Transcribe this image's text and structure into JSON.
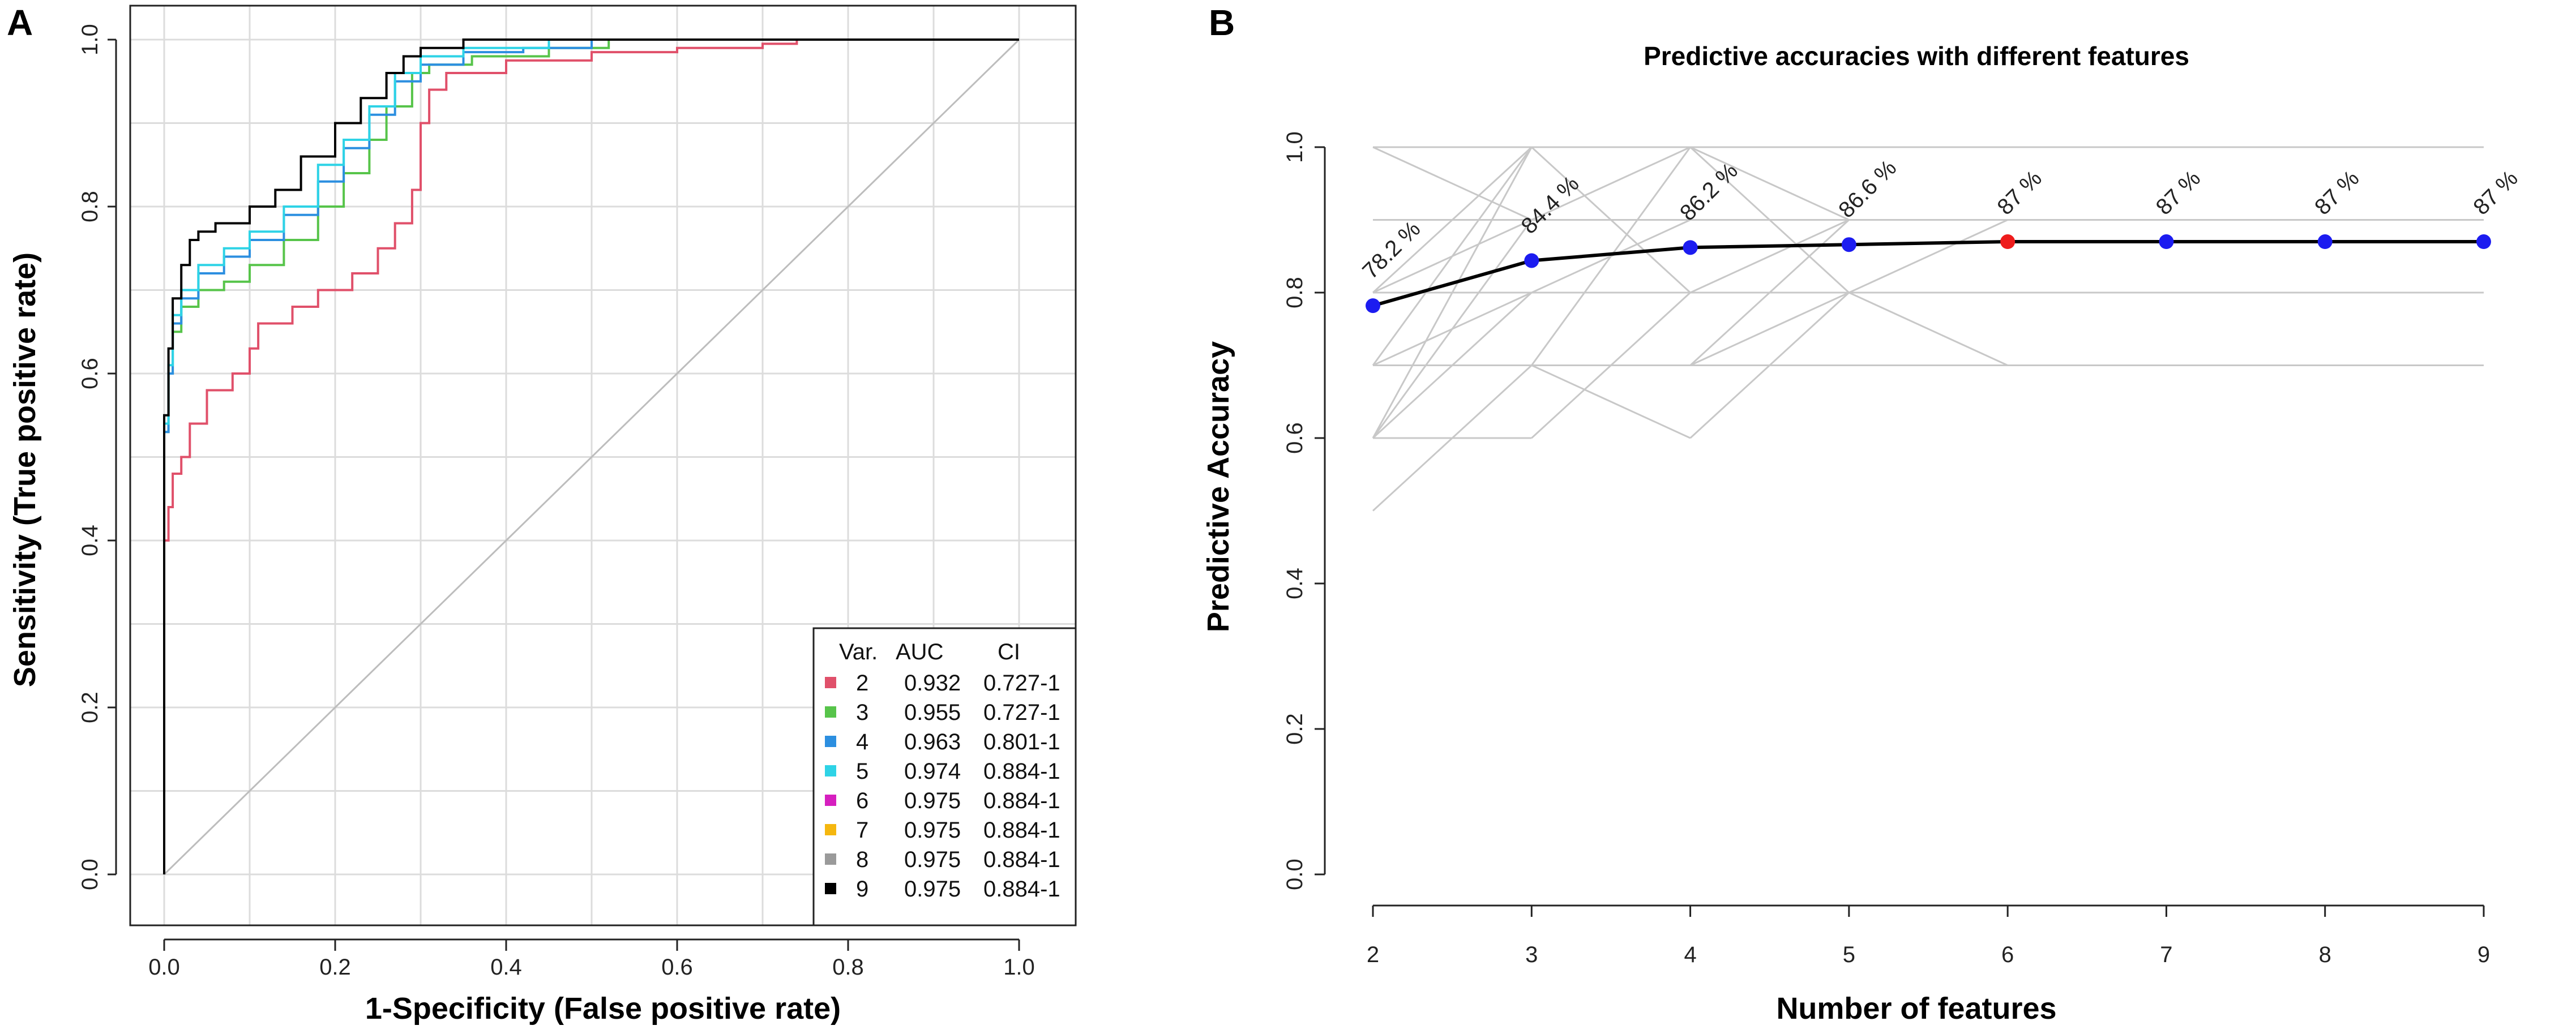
{
  "chart_data": [
    {
      "panel": "A",
      "type": "line",
      "title": "",
      "xlabel": "1-Specificity (False positive rate)",
      "ylabel": "Sensitivity (True positive rate)",
      "xlim": [
        0,
        1
      ],
      "ylim": [
        0,
        1
      ],
      "xticks": [
        "0.0",
        "0.2",
        "0.4",
        "0.6",
        "0.8",
        "1.0"
      ],
      "yticks": [
        "0.0",
        "0.2",
        "0.4",
        "0.6",
        "0.8",
        "1.0"
      ],
      "grid": true,
      "legend": {
        "placement": "bottom-right",
        "headers": [
          "Var.",
          "AUC",
          "CI"
        ],
        "entries": [
          {
            "var": "2",
            "auc": "0.932",
            "ci": "0.727-1",
            "color": "#e0506a"
          },
          {
            "var": "3",
            "auc": "0.955",
            "ci": "0.727-1",
            "color": "#57c44a"
          },
          {
            "var": "4",
            "auc": "0.963",
            "ci": "0.801-1",
            "color": "#2c8fe0"
          },
          {
            "var": "5",
            "auc": "0.974",
            "ci": "0.884-1",
            "color": "#2ed3e6"
          },
          {
            "var": "6",
            "auc": "0.975",
            "ci": "0.884-1",
            "color": "#d61fbf"
          },
          {
            "var": "7",
            "auc": "0.975",
            "ci": "0.884-1",
            "color": "#f5b70f"
          },
          {
            "var": "8",
            "auc": "0.975",
            "ci": "0.884-1",
            "color": "#9a9a9a"
          },
          {
            "var": "9",
            "auc": "0.975",
            "ci": "0.884-1",
            "color": "#000000"
          }
        ]
      },
      "series": [
        {
          "name": "2",
          "color": "#e0506a",
          "points": [
            [
              0,
              0
            ],
            [
              0,
              0.4
            ],
            [
              0.005,
              0.44
            ],
            [
              0.01,
              0.48
            ],
            [
              0.02,
              0.5
            ],
            [
              0.03,
              0.54
            ],
            [
              0.05,
              0.58
            ],
            [
              0.08,
              0.6
            ],
            [
              0.1,
              0.63
            ],
            [
              0.11,
              0.66
            ],
            [
              0.15,
              0.68
            ],
            [
              0.18,
              0.7
            ],
            [
              0.22,
              0.72
            ],
            [
              0.25,
              0.75
            ],
            [
              0.27,
              0.78
            ],
            [
              0.29,
              0.82
            ],
            [
              0.3,
              0.9
            ],
            [
              0.31,
              0.94
            ],
            [
              0.33,
              0.96
            ],
            [
              0.4,
              0.975
            ],
            [
              0.5,
              0.985
            ],
            [
              0.6,
              0.99
            ],
            [
              0.7,
              0.995
            ],
            [
              0.74,
              1.0
            ],
            [
              1.0,
              1.0
            ]
          ]
        },
        {
          "name": "3",
          "color": "#57c44a",
          "points": [
            [
              0,
              0
            ],
            [
              0,
              0.53
            ],
            [
              0.005,
              0.6
            ],
            [
              0.01,
              0.65
            ],
            [
              0.02,
              0.68
            ],
            [
              0.04,
              0.7
            ],
            [
              0.07,
              0.71
            ],
            [
              0.1,
              0.73
            ],
            [
              0.14,
              0.76
            ],
            [
              0.18,
              0.8
            ],
            [
              0.21,
              0.84
            ],
            [
              0.24,
              0.88
            ],
            [
              0.26,
              0.92
            ],
            [
              0.29,
              0.96
            ],
            [
              0.31,
              0.97
            ],
            [
              0.36,
              0.98
            ],
            [
              0.45,
              0.99
            ],
            [
              0.52,
              1.0
            ],
            [
              1.0,
              1.0
            ]
          ]
        },
        {
          "name": "4",
          "color": "#2c8fe0",
          "points": [
            [
              0,
              0
            ],
            [
              0,
              0.53
            ],
            [
              0.005,
              0.6
            ],
            [
              0.01,
              0.66
            ],
            [
              0.02,
              0.69
            ],
            [
              0.04,
              0.72
            ],
            [
              0.07,
              0.74
            ],
            [
              0.1,
              0.76
            ],
            [
              0.14,
              0.79
            ],
            [
              0.18,
              0.83
            ],
            [
              0.21,
              0.87
            ],
            [
              0.24,
              0.91
            ],
            [
              0.27,
              0.95
            ],
            [
              0.3,
              0.97
            ],
            [
              0.35,
              0.985
            ],
            [
              0.42,
              0.99
            ],
            [
              0.5,
              1.0
            ],
            [
              1.0,
              1.0
            ]
          ]
        },
        {
          "name": "5",
          "color": "#2ed3e6",
          "points": [
            [
              0,
              0
            ],
            [
              0,
              0.54
            ],
            [
              0.005,
              0.61
            ],
            [
              0.01,
              0.67
            ],
            [
              0.02,
              0.7
            ],
            [
              0.04,
              0.73
            ],
            [
              0.07,
              0.75
            ],
            [
              0.1,
              0.77
            ],
            [
              0.14,
              0.8
            ],
            [
              0.18,
              0.85
            ],
            [
              0.21,
              0.88
            ],
            [
              0.24,
              0.92
            ],
            [
              0.27,
              0.96
            ],
            [
              0.3,
              0.98
            ],
            [
              0.35,
              0.99
            ],
            [
              0.45,
              1.0
            ],
            [
              1.0,
              1.0
            ]
          ]
        },
        {
          "name": "9",
          "color": "#000000",
          "points": [
            [
              0,
              0
            ],
            [
              0,
              0.55
            ],
            [
              0.005,
              0.63
            ],
            [
              0.01,
              0.69
            ],
            [
              0.02,
              0.73
            ],
            [
              0.03,
              0.76
            ],
            [
              0.04,
              0.77
            ],
            [
              0.06,
              0.78
            ],
            [
              0.1,
              0.8
            ],
            [
              0.13,
              0.82
            ],
            [
              0.16,
              0.86
            ],
            [
              0.2,
              0.9
            ],
            [
              0.23,
              0.93
            ],
            [
              0.26,
              0.96
            ],
            [
              0.28,
              0.98
            ],
            [
              0.3,
              0.99
            ],
            [
              0.35,
              1.0
            ],
            [
              1.0,
              1.0
            ]
          ]
        }
      ]
    },
    {
      "panel": "B",
      "type": "line",
      "title": "Predictive accuracies with different features",
      "xlabel": "Number of features",
      "ylabel": "Predictive Accuracy",
      "xlim": [
        2,
        9
      ],
      "ylim": [
        0,
        1
      ],
      "xticks": [
        "2",
        "3",
        "4",
        "5",
        "6",
        "7",
        "8",
        "9"
      ],
      "yticks": [
        "0.0",
        "0.2",
        "0.4",
        "0.6",
        "0.8",
        "1.0"
      ],
      "grid": false,
      "series": [
        {
          "name": "Predictive accuracy",
          "color": "#000000",
          "x": [
            2,
            3,
            4,
            5,
            6,
            7,
            8,
            9
          ],
          "values": [
            0.782,
            0.844,
            0.862,
            0.866,
            0.87,
            0.87,
            0.87,
            0.87
          ],
          "labels": [
            "78.2 %",
            "84.4 %",
            "86.2 %",
            "86.6 %",
            "87 %",
            "87 %",
            "87 %",
            "87 %"
          ],
          "point_colors": [
            "#1c1cf0",
            "#1c1cf0",
            "#1c1cf0",
            "#1c1cf0",
            "#ee1c1c",
            "#1c1cf0",
            "#1c1cf0",
            "#1c1cf0"
          ]
        }
      ],
      "background_lines": {
        "color": "#c8c8c8",
        "segments": [
          [
            [
              2,
              0.5
            ],
            [
              3,
              0.7
            ]
          ],
          [
            [
              2,
              0.6
            ],
            [
              3,
              0.6
            ]
          ],
          [
            [
              2,
              0.6
            ],
            [
              3,
              0.8
            ]
          ],
          [
            [
              2,
              0.6
            ],
            [
              3,
              0.9
            ]
          ],
          [
            [
              2,
              0.6
            ],
            [
              3,
              1.0
            ]
          ],
          [
            [
              2,
              0.7
            ],
            [
              3,
              0.7
            ]
          ],
          [
            [
              2,
              0.7
            ],
            [
              3,
              0.8
            ]
          ],
          [
            [
              2,
              0.7
            ],
            [
              3,
              1.0
            ]
          ],
          [
            [
              2,
              0.8
            ],
            [
              3,
              0.9
            ]
          ],
          [
            [
              2,
              0.8
            ],
            [
              3,
              1.0
            ]
          ],
          [
            [
              2,
              0.9
            ],
            [
              3,
              0.9
            ]
          ],
          [
            [
              2,
              1.0
            ],
            [
              3,
              0.9
            ]
          ],
          [
            [
              2,
              1.0
            ],
            [
              3,
              1.0
            ]
          ],
          [
            [
              3,
              0.6
            ],
            [
              4,
              0.8
            ]
          ],
          [
            [
              3,
              0.7
            ],
            [
              4,
              0.6
            ]
          ],
          [
            [
              3,
              0.7
            ],
            [
              4,
              0.7
            ]
          ],
          [
            [
              3,
              0.7
            ],
            [
              4,
              1.0
            ]
          ],
          [
            [
              3,
              0.8
            ],
            [
              4,
              0.9
            ]
          ],
          [
            [
              3,
              0.8
            ],
            [
              4,
              0.8
            ]
          ],
          [
            [
              3,
              0.9
            ],
            [
              4,
              0.9
            ]
          ],
          [
            [
              3,
              0.9
            ],
            [
              4,
              1.0
            ]
          ],
          [
            [
              3,
              1.0
            ],
            [
              4,
              1.0
            ]
          ],
          [
            [
              3,
              1.0
            ],
            [
              4,
              0.8
            ]
          ],
          [
            [
              4,
              0.6
            ],
            [
              5,
              0.8
            ]
          ],
          [
            [
              4,
              0.7
            ],
            [
              5,
              0.8
            ]
          ],
          [
            [
              4,
              0.7
            ],
            [
              5,
              0.9
            ]
          ],
          [
            [
              4,
              0.8
            ],
            [
              5,
              0.9
            ]
          ],
          [
            [
              4,
              0.9
            ],
            [
              5,
              0.9
            ]
          ],
          [
            [
              4,
              1.0
            ],
            [
              5,
              1.0
            ]
          ],
          [
            [
              4,
              1.0
            ],
            [
              5,
              0.8
            ]
          ],
          [
            [
              4,
              1.0
            ],
            [
              5,
              0.9
            ]
          ],
          [
            [
              5,
              0.8
            ],
            [
              6,
              0.7
            ]
          ],
          [
            [
              5,
              0.8
            ],
            [
              6,
              0.9
            ]
          ],
          [
            [
              5,
              0.9
            ],
            [
              6,
              0.9
            ]
          ],
          [
            [
              5,
              1.0
            ],
            [
              6,
              1.0
            ]
          ],
          [
            [
              2,
              0.7
            ],
            [
              9,
              0.7
            ]
          ],
          [
            [
              2,
              0.8
            ],
            [
              9,
              0.8
            ]
          ],
          [
            [
              2,
              0.9
            ],
            [
              9,
              0.9
            ]
          ],
          [
            [
              3,
              1.0
            ],
            [
              9,
              1.0
            ]
          ]
        ]
      }
    }
  ]
}
